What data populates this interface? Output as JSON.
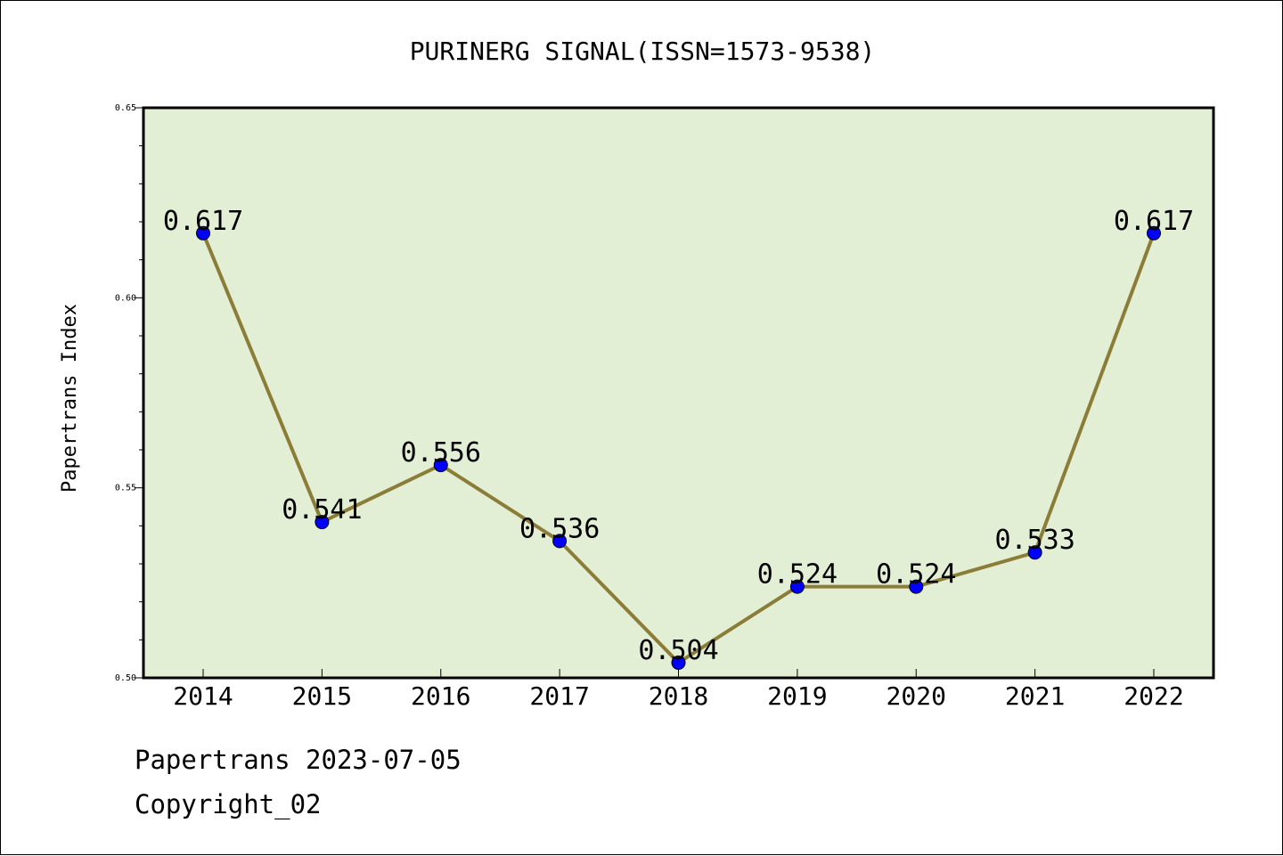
{
  "chart_data": {
    "type": "line",
    "title": "PURINERG SIGNAL(ISSN=1573-9538)",
    "xlabel": "",
    "ylabel": "Papertrans Index",
    "categories": [
      "2014",
      "2015",
      "2016",
      "2017",
      "2018",
      "2019",
      "2020",
      "2021",
      "2022"
    ],
    "values": [
      0.617,
      0.541,
      0.556,
      0.536,
      0.504,
      0.524,
      0.524,
      0.533,
      0.617
    ],
    "data_labels": [
      "0.617",
      "0.541",
      "0.556",
      "0.536",
      "0.504",
      "0.524",
      "0.524",
      "0.533",
      "0.617"
    ],
    "ylim": [
      0.5,
      0.65
    ],
    "yticks": [
      0.5,
      0.55,
      0.6,
      0.65
    ],
    "ytick_labels": [
      "0.50",
      "0.55",
      "0.60",
      "0.65"
    ],
    "grid": false,
    "colors": {
      "plot_background": "#e2efd5",
      "line": "#8b7d38",
      "marker": "#0000ff"
    }
  },
  "footer": {
    "date_line": "Papertrans 2023-07-05",
    "copyright_line": "Copyright_02"
  }
}
